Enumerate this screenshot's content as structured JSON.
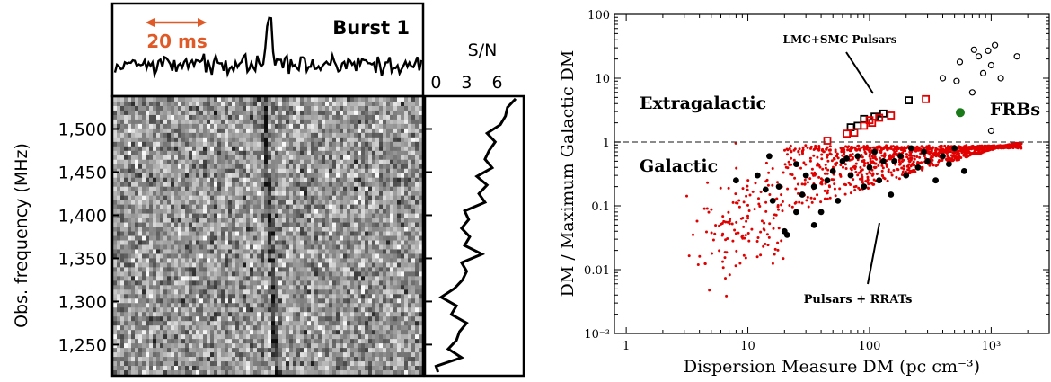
{
  "chart_data": [
    {
      "type": "heatmap",
      "title": "Burst 1",
      "scale_bar_label": "20 ms",
      "ylabel": "Obs. frequency (MHz)",
      "y_ticks": [
        "1,500",
        "1,450",
        "1,400",
        "1,350",
        "1,300",
        "1,250"
      ],
      "y_tick_values": [
        1500,
        1450,
        1400,
        1350,
        1300,
        1250
      ],
      "ylim": [
        1215,
        1537
      ],
      "colors": {
        "scale_bar": "#e05a28"
      },
      "sn_panel": {
        "type": "line",
        "xlabel": "S/N",
        "x_ticks": [
          "0",
          "3",
          "6"
        ],
        "xlim": [
          -1,
          8.5
        ],
        "frequency": [
          1535,
          1525,
          1515,
          1505,
          1495,
          1485,
          1475,
          1465,
          1455,
          1445,
          1435,
          1425,
          1415,
          1405,
          1395,
          1385,
          1375,
          1365,
          1355,
          1345,
          1335,
          1325,
          1315,
          1305,
          1295,
          1285,
          1275,
          1265,
          1255,
          1245,
          1235,
          1225,
          1218
        ],
        "sn": [
          7.8,
          7.0,
          6.8,
          6.3,
          5.0,
          5.8,
          5.2,
          4.8,
          5.5,
          4.0,
          5.0,
          4.2,
          4.8,
          2.8,
          3.2,
          2.5,
          3.3,
          2.8,
          4.5,
          2.5,
          3.0,
          2.6,
          1.8,
          0.5,
          2.0,
          1.5,
          3.0,
          2.3,
          2.0,
          1.2,
          2.5,
          0.0,
          0.2
        ]
      }
    },
    {
      "type": "scatter",
      "xlabel": "Dispersion  Measure DM  (pc cm⁻³)",
      "ylabel": "DM / Maximum Galactic DM",
      "x_scale": "log",
      "y_scale": "log",
      "xlim": [
        0.8,
        3000
      ],
      "ylim": [
        0.001,
        100
      ],
      "x_ticks": [
        "1",
        "10",
        "100",
        "10³"
      ],
      "y_ticks": [
        "100",
        "10",
        "1",
        "0.1",
        "0.01",
        "10⁻³"
      ],
      "reference_line": 1,
      "annotations": [
        "LMC+SMC Pulsars",
        "Pulsars + RRATs"
      ],
      "region_labels": [
        "Extragalactic",
        "Galactic"
      ],
      "legend_label": "FRBs",
      "colors": {
        "pulsars": "#e00000",
        "rrats": "#000000",
        "frbs": "#1a7a1a",
        "lmc": "#000000",
        "smc": "#e00000"
      },
      "series": [
        {
          "name": "FRBs",
          "marker": "open-circle",
          "points": [
            [
              553,
              18
            ],
            [
              723,
              28
            ],
            [
              1074,
              33
            ],
            [
              1629,
              22
            ],
            [
              790,
              22
            ],
            [
              944,
              27
            ],
            [
              400,
              10
            ],
            [
              520,
              9
            ],
            [
              860,
              12
            ],
            [
              1000,
              16
            ],
            [
              1200,
              10
            ],
            [
              700,
              6
            ],
            [
              1000,
              1.5
            ]
          ]
        },
        {
          "name": "",
          "marker": "filled-circle",
          "points": [
            [
              557,
              2.9
            ]
          ]
        },
        {
          "name": "",
          "marker": "open-square",
          "points": [
            [
              70,
              1.7
            ],
            [
              90,
              2.3
            ],
            [
              110,
              2.5
            ],
            [
              130,
              2.8
            ],
            [
              210,
              4.5
            ],
            [
              80,
              1.8
            ]
          ]
        },
        {
          "name": "",
          "marker": "open-square",
          "points": [
            [
              45,
              1.05
            ],
            [
              65,
              1.35
            ],
            [
              75,
              1.4
            ],
            [
              90,
              1.8
            ],
            [
              105,
              2.0
            ],
            [
              120,
              2.4
            ],
            [
              150,
              2.6
            ],
            [
              290,
              4.7
            ],
            [
              100,
              2.2
            ]
          ]
        },
        {
          "name": "",
          "marker": "filled-circle",
          "points": [
            [
              8,
              0.25
            ],
            [
              12,
              0.3
            ],
            [
              14,
              0.18
            ],
            [
              18,
              0.2
            ],
            [
              20,
              0.04
            ],
            [
              21,
              0.035
            ],
            [
              25,
              0.08
            ],
            [
              28,
              0.15
            ],
            [
              30,
              0.3
            ],
            [
              35,
              0.05
            ],
            [
              40,
              0.08
            ],
            [
              45,
              0.25
            ],
            [
              50,
              0.35
            ],
            [
              55,
              0.12
            ],
            [
              60,
              0.5
            ],
            [
              70,
              0.3
            ],
            [
              80,
              0.6
            ],
            [
              90,
              0.2
            ],
            [
              100,
              0.4
            ],
            [
              110,
              0.7
            ],
            [
              130,
              0.5
            ],
            [
              150,
              0.15
            ],
            [
              180,
              0.6
            ],
            [
              200,
              0.3
            ],
            [
              220,
              0.8
            ],
            [
              250,
              0.4
            ],
            [
              300,
              0.5
            ],
            [
              350,
              0.25
            ],
            [
              400,
              0.6
            ],
            [
              500,
              0.8
            ],
            [
              600,
              0.35
            ],
            [
              15,
              0.6
            ],
            [
              25,
              0.45
            ],
            [
              65,
              0.55
            ],
            [
              120,
              0.25
            ],
            [
              160,
              0.5
            ],
            [
              35,
              0.2
            ],
            [
              16,
              0.12
            ],
            [
              280,
              0.7
            ],
            [
              450,
              0.45
            ]
          ]
        },
        {
          "name": "",
          "marker": "dot",
          "points": []
        }
      ]
    }
  ]
}
